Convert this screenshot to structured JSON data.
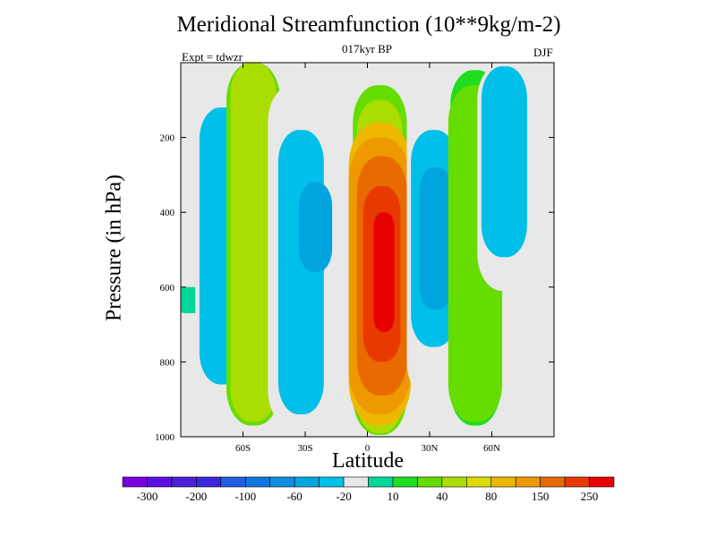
{
  "chart_data": {
    "type": "heatmap",
    "title": "Meridional Streamfunction (10**9kg/m-2)",
    "subtitle": "017kyr BP",
    "left_label": "Expt = tdwzr",
    "right_label": "DJF",
    "xlabel": "Latitude",
    "ylabel": "Pressure (in hPa)",
    "xlim": [
      -90,
      90
    ],
    "ylim": [
      1000,
      0
    ],
    "x_ticks": [
      -60,
      -30,
      0,
      30,
      60
    ],
    "x_tick_labels": [
      "60S",
      "30S",
      "0",
      "30N",
      "60N"
    ],
    "y_ticks": [
      200,
      400,
      600,
      800,
      1000
    ],
    "y_tick_labels": [
      "200",
      "400",
      "600",
      "800",
      "1000"
    ],
    "contour_levels": [
      -300,
      -250,
      -200,
      -150,
      -100,
      -80,
      -60,
      -40,
      -20,
      -10,
      10,
      20,
      40,
      60,
      80,
      100,
      150,
      200,
      250,
      300
    ],
    "colorbar_labels": [
      "-300",
      "-200",
      "-100",
      "-60",
      "-20",
      "10",
      "40",
      "80",
      "150",
      "250"
    ],
    "colorbar_colors": [
      "#7a00e0",
      "#5a10e0",
      "#4a20d8",
      "#3a28d8",
      "#2060e0",
      "#1078e0",
      "#0d8ee0",
      "#00a5e0",
      "#00bfe8",
      "#e8e8e8",
      "#00d89a",
      "#20dd20",
      "#66dd00",
      "#aadd00",
      "#dddd00",
      "#eeb800",
      "#ee9900",
      "#e86a00",
      "#e83a00",
      "#e80000"
    ],
    "series": [
      {
        "lat": -85,
        "p_top": 600,
        "p_bottom": 670,
        "value": -10
      },
      {
        "lat": -70,
        "p_top": 0,
        "p_bottom": 930,
        "value": -20
      },
      {
        "lat": -70,
        "p_top": 120,
        "p_bottom": 860,
        "value": -40
      },
      {
        "lat": -55,
        "p_top": 0,
        "p_bottom": 970,
        "value": 20
      },
      {
        "lat": -55,
        "p_top": 0,
        "p_bottom": 960,
        "value": 40
      },
      {
        "lat": -35,
        "p_top": 60,
        "p_bottom": 975,
        "value": -20
      },
      {
        "lat": -32,
        "p_top": 180,
        "p_bottom": 940,
        "value": -40
      },
      {
        "lat": -25,
        "p_top": 320,
        "p_bottom": 560,
        "value": -60
      },
      {
        "lat": -2,
        "p_top": 0,
        "p_bottom": 60,
        "value": -20
      },
      {
        "lat": 6,
        "p_top": 60,
        "p_bottom": 995,
        "value": 20
      },
      {
        "lat": 6,
        "p_top": 100,
        "p_bottom": 990,
        "value": 40
      },
      {
        "lat": 6,
        "p_top": 160,
        "p_bottom": 970,
        "value": 80
      },
      {
        "lat": 6,
        "p_top": 200,
        "p_bottom": 940,
        "value": 100
      },
      {
        "lat": 7,
        "p_top": 250,
        "p_bottom": 890,
        "value": 150
      },
      {
        "lat": 7,
        "p_top": 330,
        "p_bottom": 800,
        "value": 200
      },
      {
        "lat": 8,
        "p_top": 400,
        "p_bottom": 720,
        "value": 250
      },
      {
        "lat": 32,
        "p_top": 0,
        "p_bottom": 900,
        "value": -20
      },
      {
        "lat": 32,
        "p_top": 180,
        "p_bottom": 760,
        "value": -40
      },
      {
        "lat": 33,
        "p_top": 280,
        "p_bottom": 660,
        "value": -60
      },
      {
        "lat": 52,
        "p_top": 20,
        "p_bottom": 970,
        "value": 10
      },
      {
        "lat": 52,
        "p_top": 60,
        "p_bottom": 960,
        "value": 20
      },
      {
        "lat": 66,
        "p_top": 0,
        "p_bottom": 610,
        "value": -20
      },
      {
        "lat": 66,
        "p_top": 10,
        "p_bottom": 520,
        "value": -40
      }
    ]
  }
}
